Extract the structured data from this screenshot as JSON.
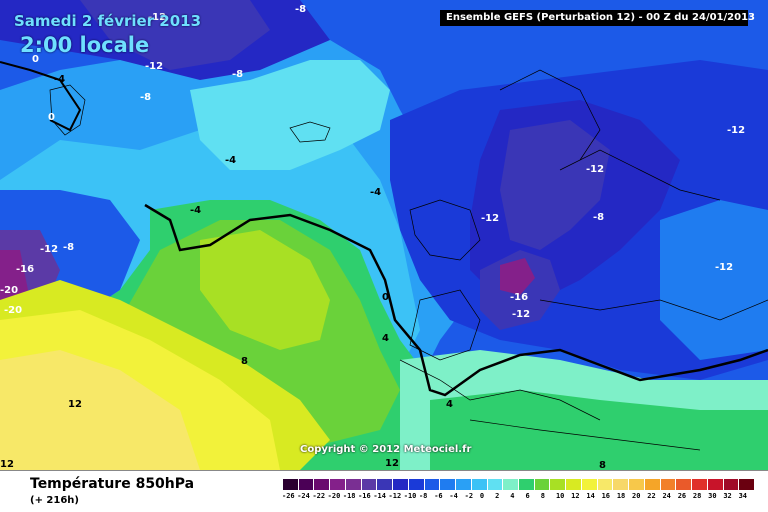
{
  "header": {
    "date": "Samedi 2 février 2013",
    "time": "2:00 locale",
    "run": "Ensemble GEFS (Perturbation 12)  -  00 Z du 24/01/2013"
  },
  "copyright": "Copyright © 2012 Meteociel.fr",
  "footer": {
    "title": "Température 850hPa",
    "lead": "(+ 216h)"
  },
  "legend": {
    "ticks": [
      "-26",
      "-24",
      "-22",
      "-20",
      "-18",
      "-16",
      "-14",
      "-12",
      "-10",
      "-8",
      "-6",
      "-4",
      "-2",
      "0",
      "2",
      "4",
      "6",
      "8",
      "10",
      "12",
      "14",
      "16",
      "18",
      "20",
      "22",
      "24",
      "26",
      "28",
      "30",
      "32",
      "34"
    ],
    "colors": [
      "#2b0030",
      "#4b0056",
      "#6a0a6e",
      "#84208a",
      "#7a2f93",
      "#5b3aa6",
      "#3a36b6",
      "#2428c4",
      "#1a3ad8",
      "#1c5ae8",
      "#1f7cf0",
      "#2aa0f5",
      "#3cc2f6",
      "#60e0f2",
      "#7ef0c8",
      "#2fcf6e",
      "#6ad23a",
      "#a8e024",
      "#d8ea22",
      "#f2f23a",
      "#f7e868",
      "#f7d868",
      "#f7c84a",
      "#f5a528",
      "#f2802a",
      "#ea5a2a",
      "#e0302a",
      "#c8142a",
      "#a00a28",
      "#6a0010"
    ]
  },
  "isotherms": [
    {
      "text": "-8"
    },
    {
      "text": "-12"
    },
    {
      "text": "-8"
    },
    {
      "text": "-8"
    },
    {
      "text": "-12"
    },
    {
      "text": "0"
    },
    {
      "text": "-4"
    },
    {
      "text": "0"
    },
    {
      "text": "-4"
    },
    {
      "text": "-4"
    },
    {
      "text": "-4"
    },
    {
      "text": "-12"
    },
    {
      "text": "-8"
    },
    {
      "text": "-16"
    },
    {
      "text": "-20"
    },
    {
      "text": "-20"
    },
    {
      "text": "-12"
    },
    {
      "text": "-12"
    },
    {
      "text": "-8"
    },
    {
      "text": "-12"
    },
    {
      "text": "-16"
    },
    {
      "text": "-12"
    },
    {
      "text": "-12"
    },
    {
      "text": "0"
    },
    {
      "text": "4"
    },
    {
      "text": "4"
    },
    {
      "text": "8"
    },
    {
      "text": "12"
    },
    {
      "text": "12"
    },
    {
      "text": "12"
    },
    {
      "text": "8"
    }
  ]
}
